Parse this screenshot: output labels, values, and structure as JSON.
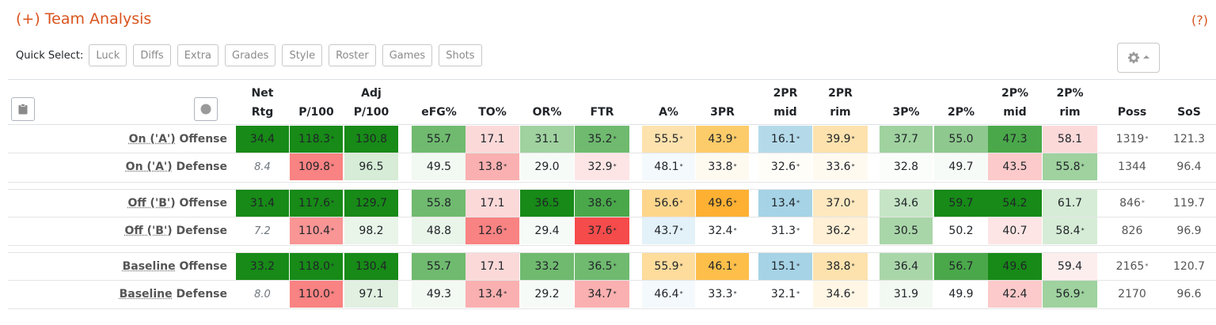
{
  "title": "(+) Team Analysis",
  "help": "(?)",
  "quick_select": {
    "label": "Quick Select:",
    "buttons": [
      "Luck",
      "Diffs",
      "Extra",
      "Grades",
      "Style",
      "Roster",
      "Games",
      "Shots"
    ]
  },
  "icons": {
    "gear": "gear-icon",
    "caret": "caret-down-icon",
    "clipboard": "clipboard-icon",
    "record": "record-circle-icon"
  },
  "headers": [
    [
      "Net",
      "Rtg"
    ],
    [
      "",
      "P/100"
    ],
    [
      "Adj",
      "P/100"
    ],
    [
      "",
      "eFG%"
    ],
    [
      "",
      "TO%"
    ],
    [
      "",
      "OR%"
    ],
    [
      "",
      "FTR"
    ],
    [
      "",
      "A%"
    ],
    [
      "",
      "3PR"
    ],
    [
      "2PR",
      "mid"
    ],
    [
      "2PR",
      "rim"
    ],
    [
      "",
      "3P%"
    ],
    [
      "",
      "2P%"
    ],
    [
      "2P%",
      "mid"
    ],
    [
      "2P%",
      "rim"
    ],
    [
      "",
      "Poss"
    ],
    [
      "",
      "SoS"
    ]
  ],
  "rows": [
    {
      "name": "On ('A')",
      "suffix": " Offense",
      "cells": [
        {
          "v": "34.4",
          "bg": "#178a17",
          "fg": "#212529"
        },
        {
          "v": "118.3",
          "star": "*",
          "bg": "#178a17",
          "fg": "#212529"
        },
        {
          "v": "130.8",
          "bg": "#178a17",
          "fg": "#212529"
        },
        {
          "v": "55.7",
          "bg": "#6fba6f"
        },
        {
          "v": "17.1",
          "bg": "#fcd9d9"
        },
        {
          "v": "31.1",
          "bg": "#9fd29f"
        },
        {
          "v": "35.2",
          "star": "*",
          "bg": "#6fba6f"
        },
        {
          "v": "55.5",
          "star": "*",
          "bg": "#fde2ad"
        },
        {
          "v": "43.9",
          "star": "*",
          "bg": "#fdcc6a"
        },
        {
          "v": "16.1",
          "star": "*",
          "bg": "#b4daea"
        },
        {
          "v": "39.9",
          "star": "*",
          "bg": "#fde2ad"
        },
        {
          "v": "37.7",
          "bg": "#9fd29f"
        },
        {
          "v": "55.0",
          "bg": "#8ec88e"
        },
        {
          "v": "47.3",
          "bg": "#4aa84a"
        },
        {
          "v": "58.1",
          "bg": "#fcd9d9"
        },
        {
          "v": "1319",
          "star": "*",
          "bg": "#ffffff",
          "plain": true
        },
        {
          "v": "121.3",
          "bg": "#ffffff",
          "plain": true
        }
      ]
    },
    {
      "name": "On ('A')",
      "suffix": " Defense",
      "cells": [
        {
          "v": "8.4",
          "bg": "#ffffff",
          "net": true
        },
        {
          "v": "109.8",
          "star": "*",
          "bg": "#f98282"
        },
        {
          "v": "96.5",
          "bg": "#d6ecd6"
        },
        {
          "v": "49.5",
          "bg": "#f2f9f2"
        },
        {
          "v": "13.8",
          "star": "*",
          "bg": "#fab0b0"
        },
        {
          "v": "29.0",
          "bg": "#f7fbf7"
        },
        {
          "v": "32.9",
          "star": "*",
          "bg": "#fde5e5"
        },
        {
          "v": "48.1",
          "star": "*",
          "bg": "#f3f9fc"
        },
        {
          "v": "33.8",
          "star": "*",
          "bg": "#fffaf0"
        },
        {
          "v": "32.6",
          "star": "*",
          "bg": "#fffdf8"
        },
        {
          "v": "33.6",
          "star": "*",
          "bg": "#fffaf0"
        },
        {
          "v": "32.8",
          "bg": "#fbfdfb"
        },
        {
          "v": "49.7",
          "bg": "#f7fbf7"
        },
        {
          "v": "43.5",
          "bg": "#fccaca"
        },
        {
          "v": "55.8",
          "star": "*",
          "bg": "#9fd29f"
        },
        {
          "v": "1344",
          "bg": "#ffffff",
          "plain": true
        },
        {
          "v": "96.4",
          "bg": "#ffffff",
          "plain": true
        }
      ]
    },
    {
      "name": "Off ('B')",
      "suffix": " Offense",
      "cells": [
        {
          "v": "31.4",
          "bg": "#178a17"
        },
        {
          "v": "117.6",
          "star": "*",
          "bg": "#178a17"
        },
        {
          "v": "129.7",
          "bg": "#178a17"
        },
        {
          "v": "55.8",
          "bg": "#6fba6f"
        },
        {
          "v": "17.1",
          "bg": "#fcd9d9"
        },
        {
          "v": "36.5",
          "bg": "#178a17"
        },
        {
          "v": "38.6",
          "star": "*",
          "bg": "#4aa84a"
        },
        {
          "v": "56.6",
          "star": "*",
          "bg": "#fdd68c"
        },
        {
          "v": "49.6",
          "star": "*",
          "bg": "#fdb032"
        },
        {
          "v": "13.4",
          "star": "*",
          "bg": "#a6d3e6"
        },
        {
          "v": "37.0",
          "star": "*",
          "bg": "#fde8bf"
        },
        {
          "v": "34.6",
          "bg": "#c6e5c6"
        },
        {
          "v": "59.7",
          "bg": "#178a17"
        },
        {
          "v": "54.2",
          "bg": "#178a17"
        },
        {
          "v": "61.7",
          "bg": "#d6ecd6"
        },
        {
          "v": "846",
          "star": "*",
          "bg": "#ffffff",
          "plain": true
        },
        {
          "v": "119.7",
          "bg": "#ffffff",
          "plain": true
        }
      ]
    },
    {
      "name": "Off ('B')",
      "suffix": " Defense",
      "cells": [
        {
          "v": "7.2",
          "bg": "#ffffff",
          "net": true
        },
        {
          "v": "110.4",
          "star": "*",
          "bg": "#f99595"
        },
        {
          "v": "98.2",
          "bg": "#e9f5e9"
        },
        {
          "v": "48.8",
          "bg": "#e9f5e9"
        },
        {
          "v": "12.6",
          "star": "*",
          "bg": "#f98282"
        },
        {
          "v": "29.4",
          "bg": "#f7fbf7"
        },
        {
          "v": "37.6",
          "star": "*",
          "bg": "#f64b4b"
        },
        {
          "v": "43.7",
          "star": "*",
          "bg": "#e3f1f8"
        },
        {
          "v": "32.4",
          "star": "*",
          "bg": "#ffffff"
        },
        {
          "v": "31.3",
          "star": "*",
          "bg": "#ffffff"
        },
        {
          "v": "36.2",
          "star": "*",
          "bg": "#fff0d6"
        },
        {
          "v": "30.5",
          "bg": "#a9d6a9"
        },
        {
          "v": "50.2",
          "bg": "#ffffff"
        },
        {
          "v": "40.7",
          "bg": "#fde5e5"
        },
        {
          "v": "58.4",
          "star": "*",
          "bg": "#d6ecd6"
        },
        {
          "v": "826",
          "bg": "#ffffff",
          "plain": true
        },
        {
          "v": "96.9",
          "bg": "#ffffff",
          "plain": true
        }
      ]
    },
    {
      "name": "Baseline",
      "suffix": " Offense",
      "cells": [
        {
          "v": "33.2",
          "bg": "#178a17"
        },
        {
          "v": "118.0",
          "star": "*",
          "bg": "#178a17"
        },
        {
          "v": "130.4",
          "bg": "#178a17"
        },
        {
          "v": "55.7",
          "bg": "#6fba6f"
        },
        {
          "v": "17.1",
          "bg": "#fcd9d9"
        },
        {
          "v": "33.2",
          "bg": "#6fba6f"
        },
        {
          "v": "36.5",
          "star": "*",
          "bg": "#6fba6f"
        },
        {
          "v": "55.9",
          "star": "*",
          "bg": "#fddc9c"
        },
        {
          "v": "46.1",
          "star": "*",
          "bg": "#fdbf4a"
        },
        {
          "v": "15.1",
          "star": "*",
          "bg": "#a6d3e6"
        },
        {
          "v": "38.8",
          "star": "*",
          "bg": "#fde2ad"
        },
        {
          "v": "36.4",
          "bg": "#a9d6a9"
        },
        {
          "v": "56.7",
          "bg": "#4aa84a"
        },
        {
          "v": "49.6",
          "bg": "#178a17"
        },
        {
          "v": "59.4",
          "bg": "#fdeeee"
        },
        {
          "v": "2165",
          "star": "*",
          "bg": "#ffffff",
          "plain": true
        },
        {
          "v": "120.7",
          "bg": "#ffffff",
          "plain": true
        }
      ]
    },
    {
      "name": "Baseline",
      "suffix": " Defense",
      "cells": [
        {
          "v": "8.0",
          "bg": "#ffffff",
          "net": true
        },
        {
          "v": "110.0",
          "star": "*",
          "bg": "#f98282"
        },
        {
          "v": "97.1",
          "bg": "#e1f0e1"
        },
        {
          "v": "49.3",
          "bg": "#f2f9f2"
        },
        {
          "v": "13.4",
          "star": "*",
          "bg": "#fab0b0"
        },
        {
          "v": "29.2",
          "bg": "#f7fbf7"
        },
        {
          "v": "34.7",
          "star": "*",
          "bg": "#fab0b0"
        },
        {
          "v": "46.4",
          "star": "*",
          "bg": "#f3f9fc"
        },
        {
          "v": "33.3",
          "star": "*",
          "bg": "#ffffff"
        },
        {
          "v": "32.1",
          "star": "*",
          "bg": "#ffffff"
        },
        {
          "v": "34.6",
          "star": "*",
          "bg": "#fff6e5"
        },
        {
          "v": "31.9",
          "bg": "#f2f9f2"
        },
        {
          "v": "49.9",
          "bg": "#ffffff"
        },
        {
          "v": "42.4",
          "bg": "#fccaca"
        },
        {
          "v": "56.9",
          "star": "*",
          "bg": "#9fd29f"
        },
        {
          "v": "2170",
          "bg": "#ffffff",
          "plain": true
        },
        {
          "v": "96.6",
          "bg": "#ffffff",
          "plain": true
        }
      ]
    }
  ]
}
